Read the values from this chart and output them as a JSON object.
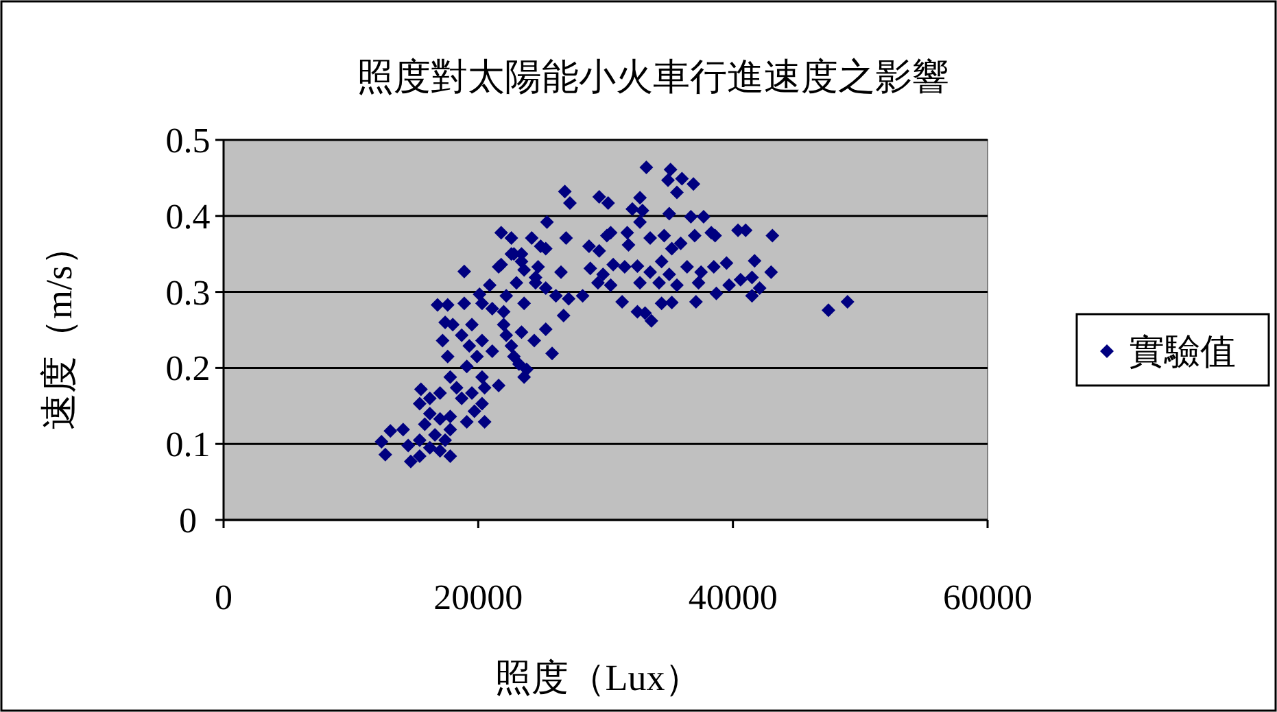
{
  "chart_data": {
    "type": "scatter",
    "title": "照度對太陽能小火車行進速度之影響",
    "xlabel": "照度（Lux）",
    "ylabel": "速度（m/s）",
    "xlim": [
      0,
      60000
    ],
    "xticks": [
      0,
      20000,
      40000,
      60000
    ],
    "ylim": [
      0,
      0.5
    ],
    "yticks": [
      0,
      0.1,
      0.2,
      0.3,
      0.4,
      0.5
    ],
    "grid": "y",
    "legend": "right",
    "marker": "diamond",
    "series": [
      {
        "name": "實驗值",
        "color": "#000080",
        "x": [
          33200,
          35100,
          36000,
          36900,
          34900,
          35600,
          26800,
          27200,
          29500,
          30200,
          32700,
          32100,
          32900,
          35000,
          36700,
          37700,
          25400,
          32700,
          21800,
          26900,
          28700,
          29500,
          30100,
          30400,
          31700,
          31800,
          33500,
          34600,
          35200,
          35900,
          37000,
          38300,
          38600,
          40400,
          41000,
          43100,
          22600,
          24200,
          25300,
          23400,
          22600,
          21800,
          18900,
          23600,
          24700,
          26500,
          28800,
          29800,
          30600,
          31500,
          32500,
          33500,
          34400,
          35000,
          36400,
          37500,
          38500,
          39500,
          41700,
          43000,
          28200,
          29400,
          30400,
          32700,
          34200,
          35600,
          37300,
          38700,
          39700,
          40600,
          41500,
          42100,
          41500,
          31300,
          34400,
          35200,
          37100,
          32500,
          33100,
          33600,
          47500,
          49000,
          24500,
          25300,
          26100,
          27100,
          26700,
          25300,
          25800,
          23600,
          23800,
          23200,
          24400,
          23400,
          22600,
          22000,
          21100,
          20900,
          20100,
          20300,
          18900,
          16800,
          17600,
          17400,
          18000,
          17200,
          18700,
          19500,
          19300,
          20300,
          21100,
          22200,
          22800,
          19900,
          17600,
          19100,
          17800,
          20300,
          20500,
          21600,
          19500,
          18700,
          20300,
          19700,
          20500,
          19100,
          17800,
          15500,
          16200,
          15400,
          17000,
          18300,
          16200,
          17000,
          15800,
          16600,
          17800,
          15400,
          17400,
          14100,
          13100,
          12400,
          12700,
          14500,
          14700,
          15400,
          17800,
          16200,
          17000,
          22800,
          23400,
          24500,
          23000,
          22200,
          24900,
          23600,
          22000,
          21600
        ],
        "values": [
          0.464,
          0.461,
          0.449,
          0.442,
          0.447,
          0.431,
          0.432,
          0.417,
          0.425,
          0.417,
          0.424,
          0.409,
          0.407,
          0.403,
          0.399,
          0.399,
          0.392,
          0.392,
          0.378,
          0.371,
          0.36,
          0.354,
          0.374,
          0.378,
          0.378,
          0.362,
          0.371,
          0.374,
          0.357,
          0.364,
          0.374,
          0.378,
          0.374,
          0.381,
          0.381,
          0.374,
          0.371,
          0.371,
          0.357,
          0.35,
          0.35,
          0.336,
          0.327,
          0.329,
          0.333,
          0.326,
          0.331,
          0.323,
          0.336,
          0.333,
          0.334,
          0.326,
          0.34,
          0.323,
          0.333,
          0.326,
          0.333,
          0.338,
          0.341,
          0.326,
          0.295,
          0.312,
          0.309,
          0.312,
          0.312,
          0.309,
          0.312,
          0.298,
          0.309,
          0.316,
          0.319,
          0.305,
          0.295,
          0.287,
          0.285,
          0.286,
          0.287,
          0.274,
          0.272,
          0.262,
          0.276,
          0.287,
          0.312,
          0.305,
          0.295,
          0.291,
          0.269,
          0.251,
          0.219,
          0.188,
          0.198,
          0.205,
          0.236,
          0.247,
          0.229,
          0.257,
          0.278,
          0.309,
          0.297,
          0.285,
          0.285,
          0.283,
          0.283,
          0.26,
          0.257,
          0.236,
          0.243,
          0.257,
          0.229,
          0.236,
          0.222,
          0.243,
          0.215,
          0.215,
          0.215,
          0.202,
          0.188,
          0.188,
          0.174,
          0.177,
          0.167,
          0.16,
          0.153,
          0.143,
          0.129,
          0.129,
          0.136,
          0.172,
          0.16,
          0.153,
          0.167,
          0.174,
          0.14,
          0.133,
          0.126,
          0.112,
          0.119,
          0.105,
          0.105,
          0.119,
          0.117,
          0.103,
          0.086,
          0.098,
          0.077,
          0.084,
          0.084,
          0.095,
          0.091,
          0.35,
          0.34,
          0.319,
          0.312,
          0.295,
          0.36,
          0.285,
          0.274,
          0.333
        ]
      }
    ]
  }
}
